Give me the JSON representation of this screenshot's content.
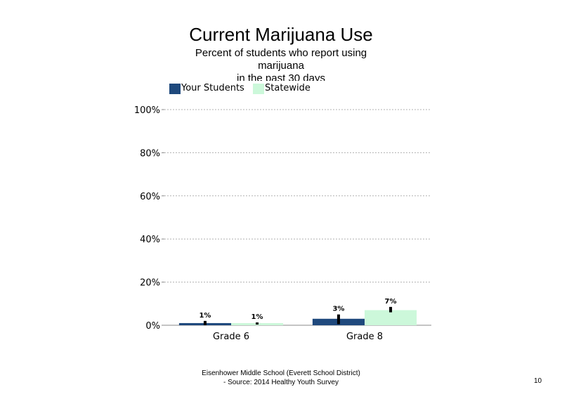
{
  "chart_data": {
    "type": "bar",
    "title": "Current Marijuana Use",
    "subtitle_lines": [
      "Percent of students who report using",
      "marijuana",
      "in the past 30 days"
    ],
    "categories": [
      "Grade 6",
      "Grade 8"
    ],
    "series": [
      {
        "name": "Your Students",
        "color": "#1f497d",
        "values": [
          1,
          3
        ],
        "data_labels": [
          "1%",
          "3%"
        ],
        "error_low": [
          0,
          0.5
        ],
        "error_high": [
          2,
          5
        ]
      },
      {
        "name": "Statewide",
        "color": "#ccf8da",
        "values": [
          1,
          7
        ],
        "data_labels": [
          "1%",
          "7%"
        ],
        "error_low": [
          0.7,
          6
        ],
        "error_high": [
          1.3,
          8.5
        ]
      }
    ],
    "y_ticks": [
      "0%",
      "20%",
      "40%",
      "60%",
      "80%",
      "100%"
    ],
    "ylim": [
      0,
      100
    ],
    "grid": true,
    "legend_position": "top-left"
  },
  "footer": {
    "line1": "Eisenhower Middle School (Everett School District)",
    "line2": "- Source: 2014 Healthy Youth Survey"
  },
  "page_number": "10"
}
